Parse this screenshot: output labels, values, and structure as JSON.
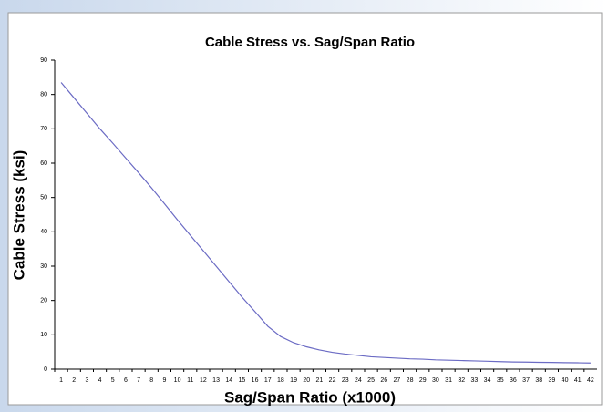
{
  "chart_data": {
    "type": "line",
    "title": "Cable Stress vs. Sag/Span Ratio",
    "x_label": "Sag/Span Ratio (x1000)",
    "y_label": "Cable Stress (ksi)",
    "categories": [
      1,
      2,
      3,
      4,
      5,
      6,
      7,
      8,
      9,
      10,
      11,
      12,
      13,
      14,
      15,
      16,
      17,
      18,
      19,
      20,
      21,
      22,
      23,
      24,
      25,
      26,
      27,
      28,
      29,
      30,
      31,
      32,
      33,
      34,
      35,
      36,
      37,
      38,
      39,
      40,
      41,
      42
    ],
    "series": [
      {
        "color": "#6b6bc4",
        "values": [
          83.5,
          79,
          74.5,
          70,
          65.8,
          61.5,
          57.2,
          52.8,
          48.2,
          43.5,
          39,
          34.5,
          30,
          25.5,
          21,
          16.8,
          12.5,
          9.5,
          7.7,
          6.5,
          5.6,
          4.9,
          4.4,
          4,
          3.6,
          3.4,
          3.2,
          3,
          2.9,
          2.7,
          2.6,
          2.5,
          2.4,
          2.3,
          2.2,
          2.1,
          2.05,
          2,
          1.95,
          1.9,
          1.85,
          1.8
        ]
      }
    ],
    "ylim": [
      0,
      90
    ],
    "yticks": [
      0,
      10,
      20,
      30,
      40,
      50,
      60,
      70,
      80,
      90
    ],
    "grid": false
  }
}
